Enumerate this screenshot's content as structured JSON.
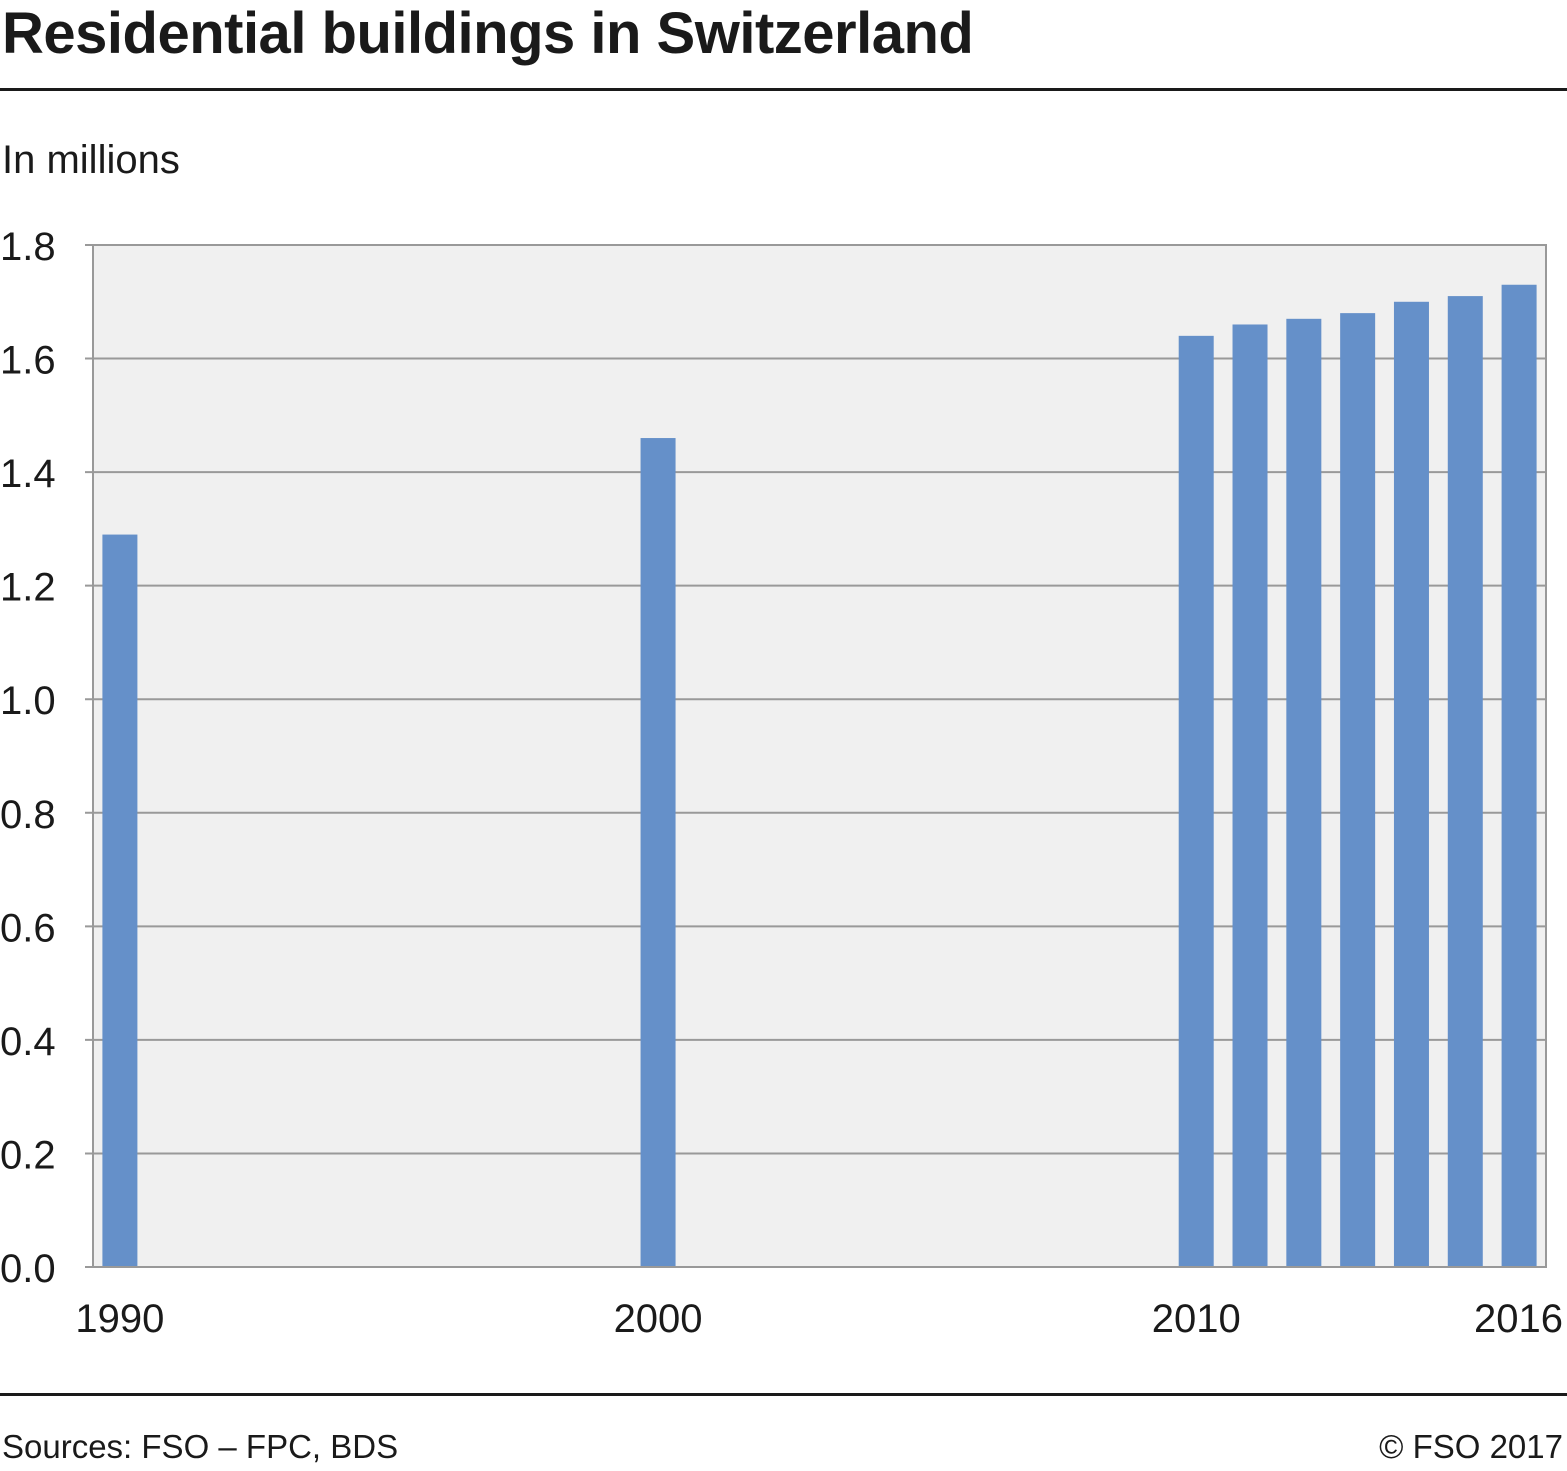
{
  "title": "Residential buildings in Switzerland",
  "subtitle": "In millions",
  "footer": {
    "source": "Sources: FSO – FPC, BDS",
    "copyright": "© FSO 2017"
  },
  "colors": {
    "bar": "#6590c9",
    "plot_background": "#f0f0f0",
    "gridline": "#999999"
  },
  "chart_data": {
    "type": "bar",
    "title": "Residential buildings in Switzerland",
    "ylabel": "In millions",
    "xlabel": "",
    "categories": [
      "1990",
      "2000",
      "2010",
      "2011",
      "2012",
      "2013",
      "2014",
      "2015",
      "2016"
    ],
    "x_positions": [
      1990,
      2000,
      2010,
      2011,
      2012,
      2013,
      2014,
      2015,
      2016
    ],
    "values": [
      1.29,
      1.46,
      1.64,
      1.66,
      1.67,
      1.68,
      1.7,
      1.71,
      1.73
    ],
    "x_tick_labels": [
      "1990",
      "2000",
      "2010",
      "2016"
    ],
    "y_ticks": [
      "0.0",
      "0.2",
      "0.4",
      "0.6",
      "0.8",
      "1.0",
      "1.2",
      "1.4",
      "1.6",
      "1.8"
    ],
    "ylim": [
      0,
      1.8
    ],
    "xlim": [
      1989.5,
      2016.5
    ],
    "grid": true,
    "legend": "none"
  }
}
